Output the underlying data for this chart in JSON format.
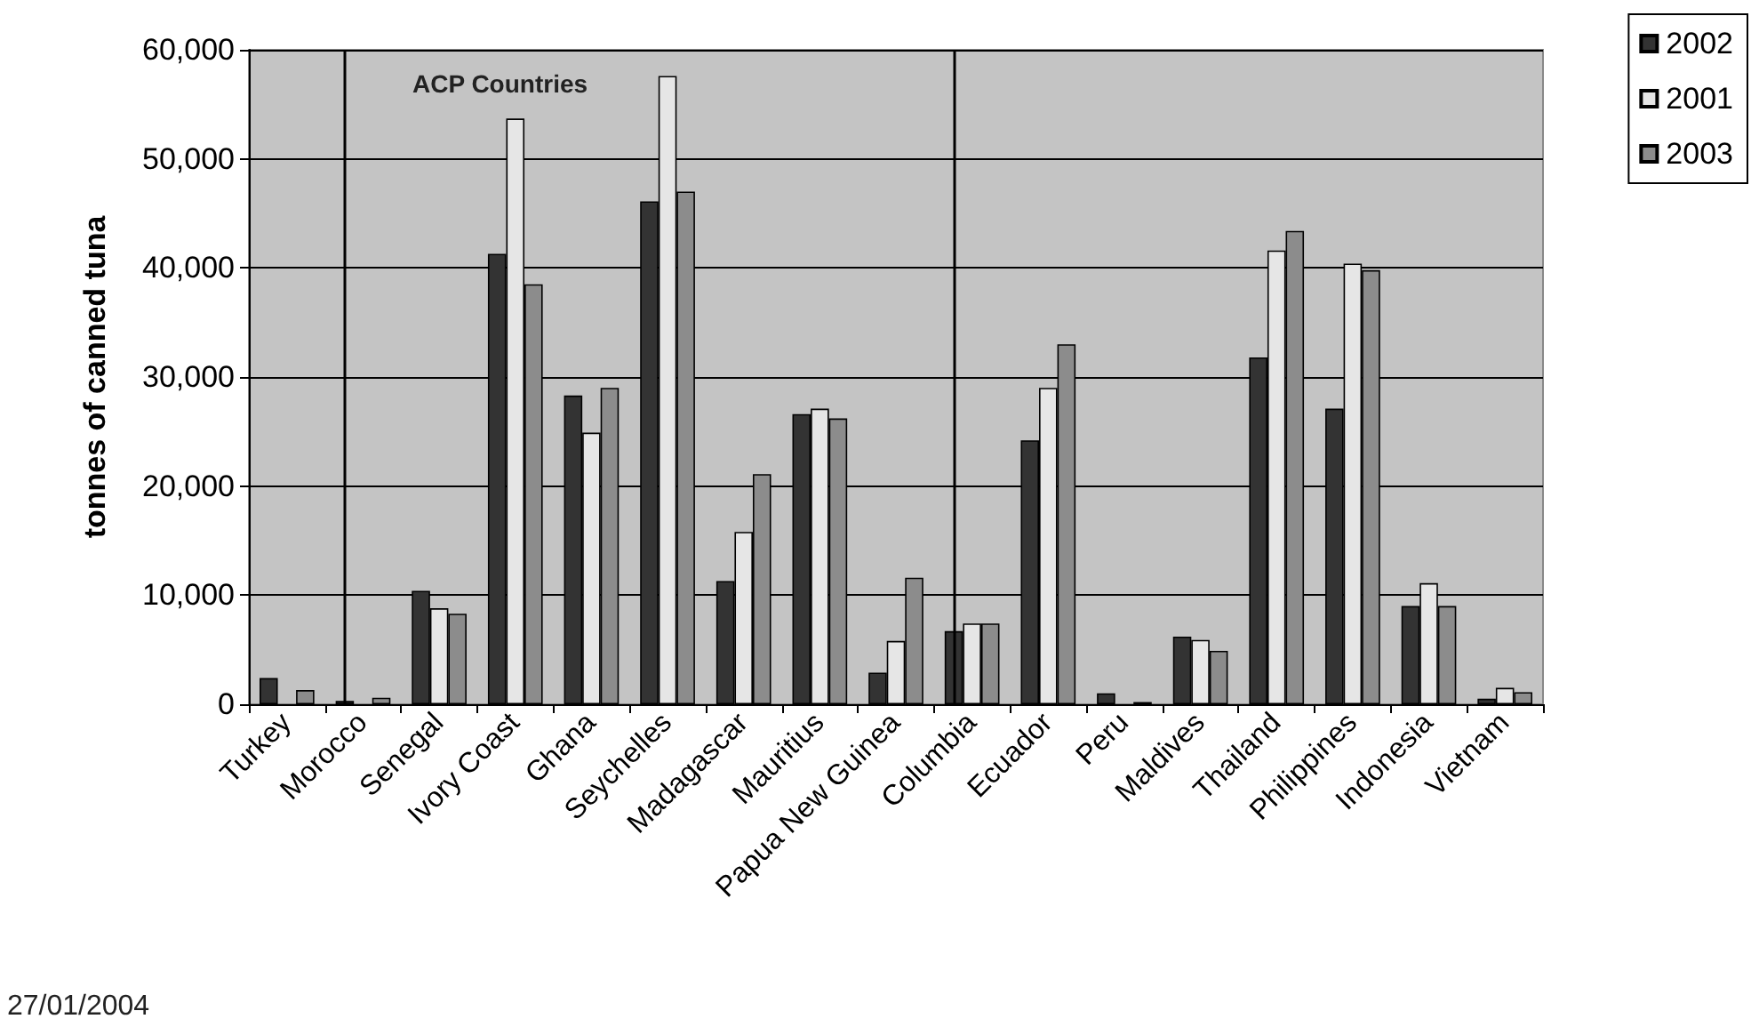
{
  "chart_data": {
    "type": "bar",
    "ylabel": "tonnes of canned tuna",
    "categories": [
      "Turkey",
      "Morocco",
      "Senegal",
      "Ivory Coast",
      "Ghana",
      "Seychelles",
      "Madagascar",
      "Mauritius",
      "Papua New Guinea",
      "Columbia",
      "Ecuador",
      "Peru",
      "Maldives",
      "Thailand",
      "Philippines",
      "Indonesia",
      "Vietnam"
    ],
    "series": [
      {
        "name": "2002",
        "color": "#333333",
        "values": [
          2400,
          300,
          10400,
          41300,
          28300,
          46100,
          11300,
          26600,
          2900,
          6700,
          24200,
          1000,
          6200,
          31800,
          27100,
          9000,
          500
        ]
      },
      {
        "name": "2001",
        "color": "#e6e6e6",
        "values": [
          null,
          null,
          8800,
          53700,
          24900,
          57600,
          15800,
          27100,
          5800,
          7400,
          29000,
          null,
          5900,
          41600,
          40400,
          11100,
          1500
        ]
      },
      {
        "name": "2003",
        "color": "#8c8c8c",
        "values": [
          1300,
          600,
          8300,
          38500,
          29000,
          47000,
          21100,
          26200,
          11600,
          7400,
          33000,
          200,
          4900,
          43400,
          39800,
          9000,
          1100
        ]
      }
    ],
    "ylim": [
      0,
      60000
    ],
    "yticks": [
      0,
      {
        "value": 10000,
        "label": "10,000"
      },
      {
        "value": 20000,
        "label": "20,000"
      },
      {
        "value": 30000,
        "label": "30,000"
      },
      {
        "value": 40000,
        "label": "40,000"
      },
      {
        "value": 50000,
        "label": "50,000"
      },
      {
        "value": 60000,
        "label": "60,000"
      }
    ],
    "grid": "y",
    "legend": "top right",
    "ref_lines": [
      {
        "axis": "x",
        "value": "Morocco",
        "color": "#000000"
      },
      {
        "axis": "x",
        "value": "Columbia",
        "color": "#000000"
      }
    ],
    "annotations": [
      "ACP Countries",
      "27/01/2004"
    ]
  }
}
